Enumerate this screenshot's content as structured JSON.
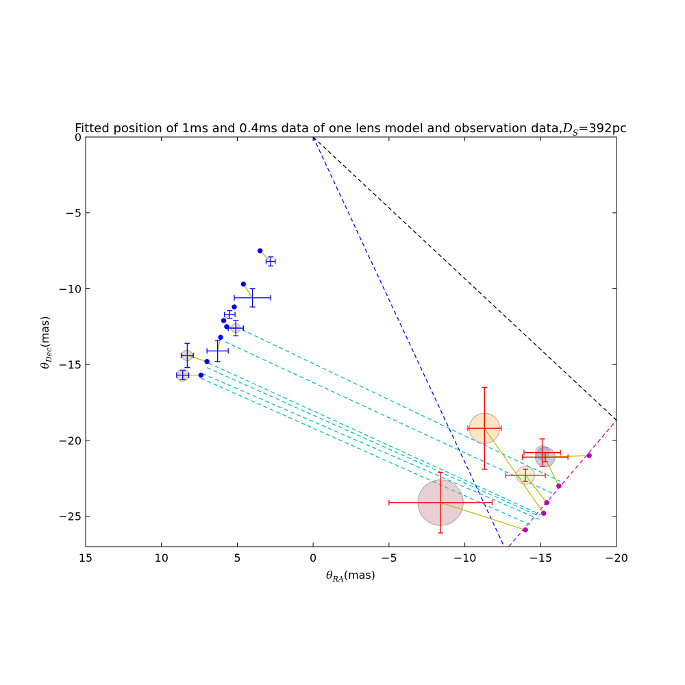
{
  "chart_data": {
    "type": "scatter",
    "title": "Fitted position of 1ms and 0.4ms data of one lens model and observation data,",
    "title_math": "D",
    "title_math_sub": "S",
    "title_suffix": "=392pc",
    "xlabel_math": "θ",
    "xlabel_sub": "RA",
    "xlabel_unit": "(mas)",
    "ylabel_math": "θ",
    "ylabel_sub": "Dec",
    "ylabel_unit": "(mas)",
    "xlim": [
      15,
      -20
    ],
    "ylim": [
      -27,
      0
    ],
    "xticks": [
      15,
      10,
      5,
      0,
      -5,
      -10,
      -15,
      -20
    ],
    "xtick_labels": [
      "15",
      "10",
      "5",
      "0",
      "−5",
      "−10",
      "−15",
      "−20"
    ],
    "yticks": [
      0,
      -5,
      -10,
      -15,
      -20,
      -25
    ],
    "ytick_labels": [
      "0",
      "−5",
      "−10",
      "−15",
      "−20",
      "−25"
    ],
    "grid": false,
    "colors": {
      "blue_line": "#0000ff",
      "magenta_line": "#bf00bf",
      "black_line": "#000000",
      "cyan_line": "#00bfbf",
      "connector": "#bfbf00",
      "blue_errorbar": "#0000ff",
      "red_errorbar": "#ff0000"
    },
    "lines": [
      {
        "name": "blue-lens-line",
        "x": [
          0,
          -12.6
        ],
        "y": [
          0,
          -27
        ],
        "color": "#0000ff"
      },
      {
        "name": "black-line",
        "x": [
          0,
          -20
        ],
        "y": [
          0,
          -18.67
        ],
        "color": "#000000"
      },
      {
        "name": "magenta-lens-line",
        "x": [
          -12.9,
          -20
        ],
        "y": [
          -27,
          -18.67
        ],
        "color": "#bf00bf"
      }
    ],
    "cyan_lines": [
      {
        "x": [
          5.1,
          -16.3
        ],
        "y": [
          -12.5,
          -22.7
        ]
      },
      {
        "x": [
          5.8,
          -15.8
        ],
        "y": [
          -13.5,
          -23.5
        ]
      },
      {
        "x": [
          6.9,
          -15.0
        ],
        "y": [
          -14.9,
          -24.9
        ]
      },
      {
        "x": [
          7.0,
          -14.9
        ],
        "y": [
          -15.2,
          -25.0
        ]
      },
      {
        "x": [
          7.3,
          -14.9
        ],
        "y": [
          -15.6,
          -25.2
        ]
      },
      {
        "x": [
          7.4,
          -14.4
        ],
        "y": [
          -15.9,
          -25.6
        ]
      }
    ],
    "series": [
      {
        "name": "fit-blue",
        "marker_color": "#0000ff",
        "x": [
          3.5,
          4.6,
          5.2,
          5.9,
          5.7,
          6.1,
          7.0,
          7.4
        ],
        "y": [
          -7.5,
          -9.7,
          -11.2,
          -12.1,
          -12.5,
          -13.2,
          -14.8,
          -15.7
        ]
      },
      {
        "name": "fit-magenta",
        "marker_color": "#bf00bf",
        "x": [
          -18.2,
          -16.2,
          -15.4,
          -15.2,
          -14.0
        ],
        "y": [
          -21.0,
          -23.0,
          -24.1,
          -24.8,
          -25.9
        ]
      }
    ],
    "observations_blue": [
      {
        "x": 2.8,
        "y": -8.2,
        "xerr": 0.3,
        "yerr": 0.3,
        "r": 0
      },
      {
        "x": 4.0,
        "y": -10.6,
        "xerr": 1.2,
        "yerr": 0.6,
        "r": 0
      },
      {
        "x": 5.5,
        "y": -11.7,
        "xerr": 0.35,
        "yerr": 0.25,
        "r": 0
      },
      {
        "x": 5.1,
        "y": -12.6,
        "xerr": 0.5,
        "yerr": 0.5,
        "r": 0.3
      },
      {
        "x": 6.3,
        "y": -14.1,
        "xerr": 0.7,
        "yerr": 0.7,
        "r": 0
      },
      {
        "x": 8.3,
        "y": -14.4,
        "xerr": 0.4,
        "yerr": 0.8,
        "r": 0.35
      },
      {
        "x": 8.6,
        "y": -15.7,
        "xerr": 0.4,
        "yerr": 0.3,
        "r": 0.4
      }
    ],
    "observations_red": [
      {
        "x": -11.3,
        "y": -19.2,
        "xerr": 1.1,
        "yerr": 2.7,
        "r": 1.0,
        "fill": "#f9c77a"
      },
      {
        "x": -15.1,
        "y": -20.8,
        "xerr": 1.2,
        "yerr": 0.9,
        "r": 0.45,
        "fill": "#9bb4e0"
      },
      {
        "x": -15.3,
        "y": -21.1,
        "xerr": 1.5,
        "yerr": 0.3,
        "r": 0.65,
        "fill": "#8f86c0"
      },
      {
        "x": -14.0,
        "y": -22.3,
        "xerr": 1.3,
        "yerr": 0.4,
        "r": 0.6,
        "fill": "#d9dca8"
      },
      {
        "x": -8.4,
        "y": -24.1,
        "xerr": 3.4,
        "yerr": 2.0,
        "r": 1.5,
        "fill": "#c9949c"
      }
    ],
    "connectors": [
      {
        "x": [
          3.5,
          2.8
        ],
        "y": [
          -7.5,
          -8.2
        ]
      },
      {
        "x": [
          4.6,
          4.0
        ],
        "y": [
          -9.7,
          -10.6
        ]
      },
      {
        "x": [
          5.9,
          5.5
        ],
        "y": [
          -12.1,
          -11.7
        ]
      },
      {
        "x": [
          5.7,
          5.1
        ],
        "y": [
          -12.5,
          -12.6
        ]
      },
      {
        "x": [
          6.1,
          6.3
        ],
        "y": [
          -13.2,
          -14.1
        ]
      },
      {
        "x": [
          7.0,
          8.3
        ],
        "y": [
          -14.8,
          -14.4
        ]
      },
      {
        "x": [
          7.4,
          8.6
        ],
        "y": [
          -15.7,
          -15.7
        ]
      },
      {
        "x": [
          -18.2,
          -15.3
        ],
        "y": [
          -21.0,
          -21.1
        ]
      },
      {
        "x": [
          -16.2,
          -15.1
        ],
        "y": [
          -23.0,
          -20.8
        ]
      },
      {
        "x": [
          -15.4,
          -14.0
        ],
        "y": [
          -24.1,
          -22.3
        ]
      },
      {
        "x": [
          -15.2,
          -11.3
        ],
        "y": [
          -24.8,
          -19.2
        ]
      },
      {
        "x": [
          -14.0,
          -8.4
        ],
        "y": [
          -25.9,
          -24.1
        ]
      }
    ]
  }
}
